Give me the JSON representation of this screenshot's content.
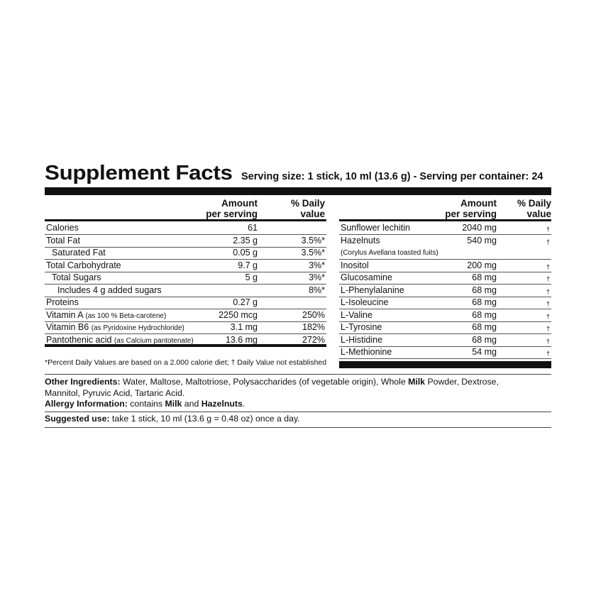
{
  "title": "Supplement Facts",
  "serving": "Serving size: 1 stick, 10 ml (13.6 g) - Serving per container: 24",
  "left": {
    "amount_header": [
      "Amount",
      "per serving"
    ],
    "dv_header": [
      "% Daily",
      "value"
    ],
    "rows": [
      {
        "name": "Calories",
        "amount": "61",
        "dv": ""
      },
      {
        "name": "Total Fat",
        "amount": "2.35 g",
        "dv": "3.5%*",
        "sep": "thin"
      },
      {
        "name": "Saturated Fat",
        "amount": "0.05 g",
        "dv": "3.5%*",
        "indent": 1
      },
      {
        "name": "Total Carbohydrate",
        "amount": "9.7 g",
        "dv": "3%*"
      },
      {
        "name": "Total Sugars",
        "amount": "5 g",
        "dv": "3%*",
        "indent": 1
      },
      {
        "name": "Includes 4 g added sugars",
        "amount": "",
        "dv": "8%*",
        "indent": 2
      },
      {
        "name": "Proteins",
        "amount": "0.27 g",
        "dv": ""
      },
      {
        "name": "Vitamin A",
        "note": "(as 100 % Beta-carotene)",
        "amount": "2250 mcg",
        "dv": "250%"
      },
      {
        "name": "Vitamin B6",
        "note": "(as Pyridoxine Hydrochloride)",
        "amount": "3.1 mg",
        "dv": "182%"
      },
      {
        "name": "Pantothenic acid",
        "note": "(as Calcium pantotenate)",
        "amount": "13.6 mg",
        "dv": "272%"
      }
    ],
    "footnote": "*Percent Daily Values are based on a 2.000 calorie diet; † Daily Value not established"
  },
  "right": {
    "amount_header": [
      "Amount",
      "per serving"
    ],
    "dv_header": [
      "% Daily",
      "value"
    ],
    "rows": [
      {
        "name": "Sunflower lechitin",
        "amount": "2040 mg",
        "dv": "†"
      },
      {
        "name": "Hazelnuts",
        "amount": "540 mg",
        "dv": "†",
        "nosep": true
      },
      {
        "name": "(Corylus Avellana toasted fuits)",
        "amount": "",
        "dv": "",
        "small": true
      },
      {
        "name": "Inositol",
        "amount": "200 mg",
        "dv": "†"
      },
      {
        "name": "Glucosamine",
        "amount": "68 mg",
        "dv": "†"
      },
      {
        "name": "L-Phenylalanine",
        "amount": "68 mg",
        "dv": "†"
      },
      {
        "name": "L-Isoleucine",
        "amount": "68 mg",
        "dv": "†"
      },
      {
        "name": "L-Valine",
        "amount": "68 mg",
        "dv": "†"
      },
      {
        "name": "L-Tyrosine",
        "amount": "68 mg",
        "dv": "†"
      },
      {
        "name": "L-Histidine",
        "amount": "68 mg",
        "dv": "†"
      },
      {
        "name": "L-Methionine",
        "amount": "54 mg",
        "dv": "†"
      }
    ]
  },
  "other_ingredients": {
    "label": "Other Ingredients:",
    "text_parts": [
      " Water, Maltose, Maltotriose, Polysaccharides (of vegetable origin), Whole ",
      "Milk",
      " Powder,  Dextrose,"
    ],
    "line2": "Mannitol,  Pyruvic Acid, Tartaric Acid."
  },
  "allergy": {
    "label": "Allergy Information:",
    "text": " contains ",
    "milk": "Milk",
    "and": " and ",
    "hazel": "Hazelnuts",
    "end": "."
  },
  "suggested": {
    "label": "Suggested use:",
    "text": "  take 1 stick, 10 ml (13.6 g = 0.48 oz) once a day."
  }
}
